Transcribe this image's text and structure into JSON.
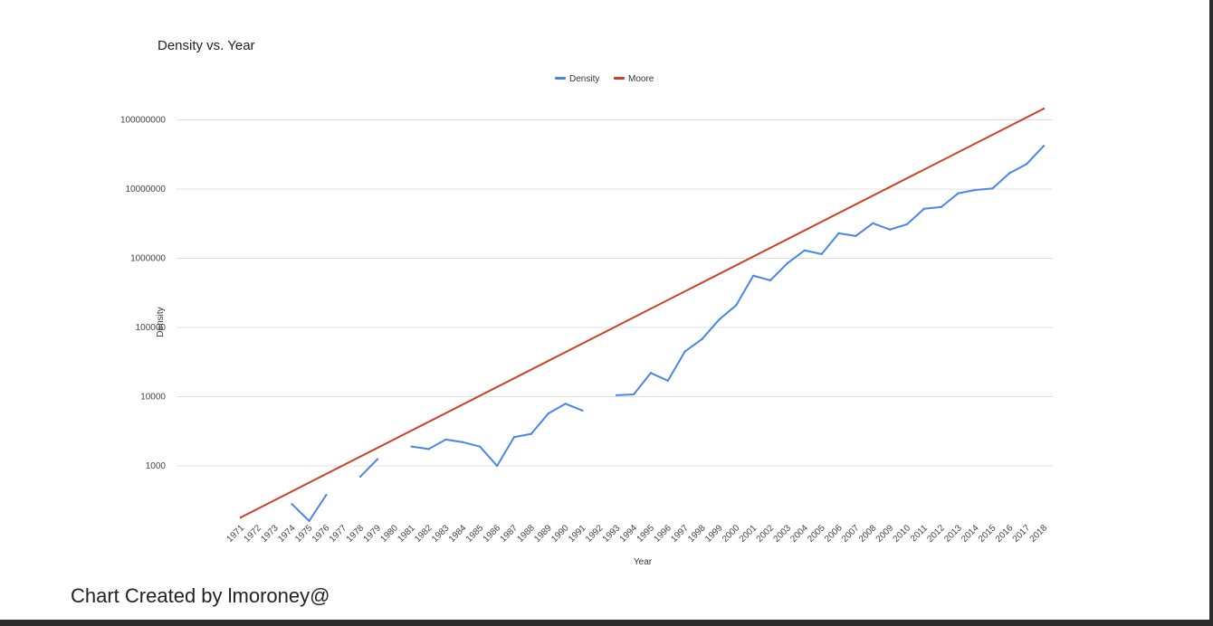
{
  "caption": "Chart Created by lmoroney@",
  "chart_data": {
    "type": "line",
    "title": "Density vs. Year",
    "xlabel": "Year",
    "ylabel": "Density",
    "y_scale": "log",
    "ylim": [
      150,
      150000000
    ],
    "yticks": [
      "1000",
      "10000",
      "100000",
      "1000000",
      "10000000",
      "100000000"
    ],
    "legend_position": "top",
    "grid": true,
    "categories": [
      "1971",
      "1972",
      "1973",
      "1974",
      "1975",
      "1976",
      "1977",
      "1978",
      "1979",
      "1980",
      "1981",
      "1982",
      "1983",
      "1984",
      "1985",
      "1986",
      "1987",
      "1988",
      "1989",
      "1990",
      "1991",
      "1992",
      "1993",
      "1994",
      "1995",
      "1996",
      "1997",
      "1998",
      "1999",
      "2000",
      "2001",
      "2002",
      "2003",
      "2004",
      "2005",
      "2006",
      "2007",
      "2008",
      "2009",
      "2010",
      "2011",
      "2012",
      "2013",
      "2014",
      "2015",
      "2016",
      "2017",
      "2018"
    ],
    "series": [
      {
        "name": "Density",
        "color": "#4a86e8",
        "values": [
          null,
          null,
          null,
          280,
          160,
          380,
          null,
          700,
          1250,
          null,
          1900,
          1750,
          2400,
          2200,
          1900,
          1000,
          2600,
          2900,
          5700,
          7900,
          6300,
          null,
          10500,
          10800,
          22000,
          17000,
          45000,
          68000,
          130000,
          210000,
          560000,
          480000,
          850000,
          1300000,
          1150000,
          2300000,
          2100000,
          3200000,
          2600000,
          3100000,
          5200000,
          5500000,
          8700000,
          9700000,
          10200000,
          17000000,
          23000000,
          42000000
        ]
      },
      {
        "name": "Moore",
        "color": "#cc4125",
        "values": [
          180,
          null,
          null,
          null,
          null,
          null,
          null,
          null,
          null,
          null,
          null,
          null,
          null,
          null,
          null,
          null,
          null,
          null,
          null,
          null,
          null,
          null,
          null,
          null,
          null,
          null,
          null,
          null,
          null,
          null,
          null,
          null,
          null,
          null,
          null,
          null,
          null,
          null,
          null,
          null,
          null,
          null,
          null,
          null,
          null,
          null,
          null,
          145000000
        ]
      }
    ]
  }
}
